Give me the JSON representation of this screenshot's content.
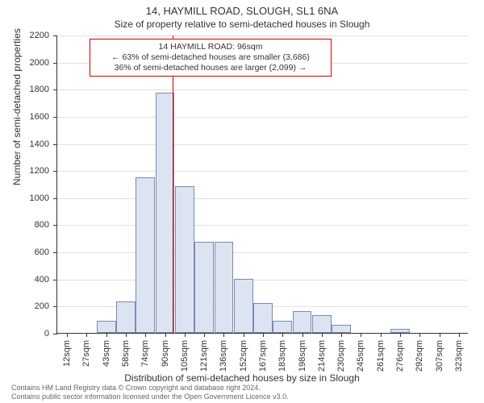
{
  "header": {
    "title": "14, HAYMILL ROAD, SLOUGH, SL1 6NA",
    "subtitle": "Size of property relative to semi-detached houses in Slough"
  },
  "chart": {
    "type": "histogram",
    "ylabel": "Number of semi-detached properties",
    "xlabel": "Distribution of semi-detached houses by size in Slough",
    "ylim": [
      0,
      2200
    ],
    "ytick_step": 200,
    "yticks": [
      0,
      200,
      400,
      600,
      800,
      1000,
      1200,
      1400,
      1600,
      1800,
      2000,
      2200
    ],
    "x_categories": [
      "12sqm",
      "27sqm",
      "43sqm",
      "58sqm",
      "74sqm",
      "90sqm",
      "105sqm",
      "121sqm",
      "136sqm",
      "152sqm",
      "167sqm",
      "183sqm",
      "198sqm",
      "214sqm",
      "230sqm",
      "245sqm",
      "261sqm",
      "276sqm",
      "292sqm",
      "307sqm",
      "323sqm"
    ],
    "values": [
      0,
      0,
      90,
      230,
      1150,
      1770,
      1080,
      670,
      670,
      400,
      220,
      90,
      160,
      130,
      60,
      0,
      0,
      30,
      0,
      0,
      0
    ],
    "bar_fill": "#dce4f2",
    "bar_border": "#7a8bb0",
    "grid_color": "#e0e0e0",
    "axis_color": "#333333",
    "background_color": "#ffffff",
    "label_fontsize": 12,
    "tick_fontsize": 11,
    "reference": {
      "value_index": 5.4,
      "color": "#d00000",
      "line_width": 1.5
    },
    "annotation": {
      "lines": [
        "14 HAYMILL ROAD: 96sqm",
        "← 63% of semi-detached houses are smaller (3,686)",
        "36% of semi-detached houses are larger (2,099) →"
      ],
      "border_color": "#d00000",
      "background": "#ffffff",
      "fontsize": 10.5
    }
  },
  "footnote": {
    "line1": "Contains HM Land Registry data © Crown copyright and database right 2024.",
    "line2": "Contains public sector information licensed under the Open Government Licence v3.0."
  }
}
